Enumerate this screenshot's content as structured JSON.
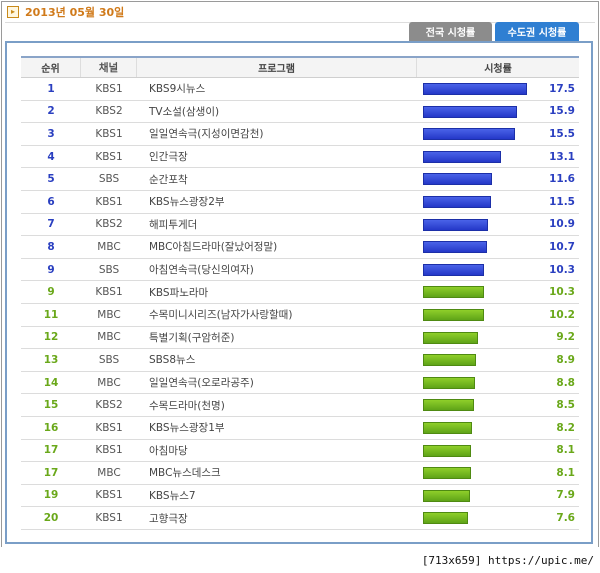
{
  "date": "2013년 05월 30일",
  "date_icon": "arrow-right-icon",
  "tabs": [
    {
      "label": "전국 시청률",
      "active": false
    },
    {
      "label": "수도권 시청률",
      "active": true
    }
  ],
  "table": {
    "headers": {
      "rank": "순위",
      "channel": "채널",
      "program": "프로그램",
      "rating": "시청률"
    },
    "rating_max": 17.5,
    "rows": [
      {
        "rank": "1",
        "channel": "KBS1",
        "program": "KBS9시뉴스",
        "rating": 17.5,
        "color": "blue"
      },
      {
        "rank": "2",
        "channel": "KBS2",
        "program": "TV소설(삼생이)",
        "rating": 15.9,
        "color": "blue"
      },
      {
        "rank": "3",
        "channel": "KBS1",
        "program": "일일연속극(지성이면감천)",
        "rating": 15.5,
        "color": "blue"
      },
      {
        "rank": "4",
        "channel": "KBS1",
        "program": "인간극장",
        "rating": 13.1,
        "color": "blue"
      },
      {
        "rank": "5",
        "channel": "SBS",
        "program": "순간포착",
        "rating": 11.6,
        "color": "blue"
      },
      {
        "rank": "6",
        "channel": "KBS1",
        "program": "KBS뉴스광장2부",
        "rating": 11.5,
        "color": "blue"
      },
      {
        "rank": "7",
        "channel": "KBS2",
        "program": "해피투게더",
        "rating": 10.9,
        "color": "blue"
      },
      {
        "rank": "8",
        "channel": "MBC",
        "program": "MBC아침드라마(잘났어정말)",
        "rating": 10.7,
        "color": "blue"
      },
      {
        "rank": "9",
        "channel": "SBS",
        "program": "아침연속극(당신의여자)",
        "rating": 10.3,
        "color": "blue"
      },
      {
        "rank": "9",
        "channel": "KBS1",
        "program": "KBS파노라마",
        "rating": 10.3,
        "color": "green"
      },
      {
        "rank": "11",
        "channel": "MBC",
        "program": "수목미니시리즈(남자가사랑할때)",
        "rating": 10.2,
        "color": "green"
      },
      {
        "rank": "12",
        "channel": "MBC",
        "program": "특별기획(구암허준)",
        "rating": 9.2,
        "color": "green"
      },
      {
        "rank": "13",
        "channel": "SBS",
        "program": "SBS8뉴스",
        "rating": 8.9,
        "color": "green"
      },
      {
        "rank": "14",
        "channel": "MBC",
        "program": "일일연속극(오로라공주)",
        "rating": 8.8,
        "color": "green"
      },
      {
        "rank": "15",
        "channel": "KBS2",
        "program": "수목드라마(천명)",
        "rating": 8.5,
        "color": "green"
      },
      {
        "rank": "16",
        "channel": "KBS1",
        "program": "KBS뉴스광장1부",
        "rating": 8.2,
        "color": "green"
      },
      {
        "rank": "17",
        "channel": "KBS1",
        "program": "아침마당",
        "rating": 8.1,
        "color": "green"
      },
      {
        "rank": "17",
        "channel": "MBC",
        "program": "MBC뉴스데스크",
        "rating": 8.1,
        "color": "green"
      },
      {
        "rank": "19",
        "channel": "KBS1",
        "program": "KBS뉴스7",
        "rating": 7.9,
        "color": "green"
      },
      {
        "rank": "20",
        "channel": "KBS1",
        "program": "고향극장",
        "rating": 7.6,
        "color": "green"
      }
    ]
  },
  "watermark": "[713x659] https://upic.me/"
}
